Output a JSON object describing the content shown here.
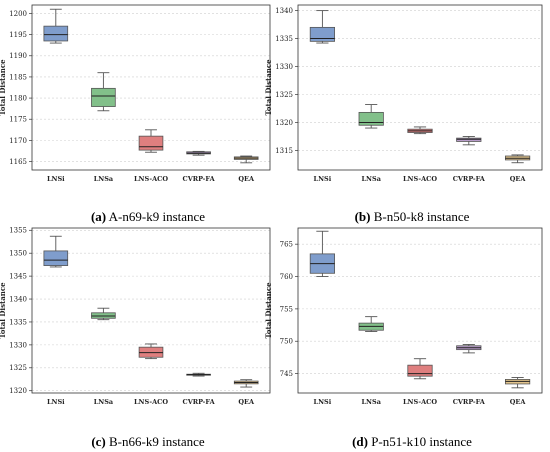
{
  "colors": {
    "LNSi": "#7f9dcc",
    "LNSa": "#82c08a",
    "LNS-ACO": "#df7f7f",
    "CVRP-FA": "#b79bc8",
    "QEA": "#e2c48d",
    "median": "#222222",
    "grid": "#d0d0d0"
  },
  "chart_data": [
    {
      "type": "box",
      "ylabel": "Total Distance",
      "categories": [
        "LNSi",
        "LNSa",
        "LNS-ACO",
        "CVRP-FA",
        "QEA"
      ],
      "ylim": [
        1163,
        1202
      ],
      "yticks": [
        1165,
        1170,
        1175,
        1180,
        1185,
        1190,
        1195,
        1200
      ],
      "grid": true,
      "caption_label": "(a)",
      "caption_text": " A-n69-k9 instance",
      "boxes": [
        {
          "min": 1193.0,
          "q1": 1193.5,
          "median": 1195.0,
          "q3": 1197.0,
          "max": 1201.0
        },
        {
          "min": 1177.0,
          "q1": 1178.0,
          "median": 1180.5,
          "q3": 1182.3,
          "max": 1186.0
        },
        {
          "min": 1167.2,
          "q1": 1167.7,
          "median": 1168.5,
          "q3": 1171.0,
          "max": 1172.5
        },
        {
          "min": 1166.5,
          "q1": 1166.8,
          "median": 1167.0,
          "q3": 1167.3,
          "max": 1167.4
        },
        {
          "min": 1164.7,
          "q1": 1165.5,
          "median": 1165.8,
          "q3": 1166.1,
          "max": 1166.3
        }
      ]
    },
    {
      "type": "box",
      "ylabel": "Total Distance",
      "categories": [
        "LNSi",
        "LNSa",
        "LNS-ACO",
        "CVRP-FA",
        "QEA"
      ],
      "ylim": [
        1311.5,
        1341
      ],
      "yticks": [
        1315,
        1320,
        1325,
        1330,
        1335,
        1340
      ],
      "grid": true,
      "caption_label": "(b)",
      "caption_text": " B-n50-k8 instance",
      "boxes": [
        {
          "min": 1334.2,
          "q1": 1334.5,
          "median": 1335.0,
          "q3": 1337.0,
          "max": 1340.0
        },
        {
          "min": 1319.0,
          "q1": 1319.5,
          "median": 1320.0,
          "q3": 1321.8,
          "max": 1323.2
        },
        {
          "min": 1318.0,
          "q1": 1318.2,
          "median": 1318.5,
          "q3": 1318.8,
          "max": 1319.2
        },
        {
          "min": 1316.0,
          "q1": 1316.6,
          "median": 1317.0,
          "q3": 1317.2,
          "max": 1317.5
        },
        {
          "min": 1312.8,
          "q1": 1313.3,
          "median": 1313.6,
          "q3": 1314.0,
          "max": 1314.2
        }
      ]
    },
    {
      "type": "box",
      "ylabel": "Total Distance",
      "categories": [
        "LNSi",
        "LNSa",
        "LNS-ACO",
        "CVRP-FA",
        "QEA"
      ],
      "ylim": [
        1319.5,
        1355.5
      ],
      "yticks": [
        1320,
        1325,
        1330,
        1335,
        1340,
        1345,
        1350,
        1355
      ],
      "grid": true,
      "caption_label": "(c)",
      "caption_text": " B-n66-k9 instance",
      "boxes": [
        {
          "min": 1347.0,
          "q1": 1347.3,
          "median": 1348.5,
          "q3": 1350.5,
          "max": 1353.7
        },
        {
          "min": 1335.5,
          "q1": 1335.8,
          "median": 1336.3,
          "q3": 1337.0,
          "max": 1338.0
        },
        {
          "min": 1327.0,
          "q1": 1327.3,
          "median": 1328.3,
          "q3": 1329.5,
          "max": 1330.2
        },
        {
          "min": 1323.2,
          "q1": 1323.4,
          "median": 1323.5,
          "q3": 1323.6,
          "max": 1323.8
        },
        {
          "min": 1320.8,
          "q1": 1321.5,
          "median": 1321.8,
          "q3": 1322.1,
          "max": 1322.4
        }
      ]
    },
    {
      "type": "box",
      "ylabel": "Total Distance",
      "categories": [
        "LNSi",
        "LNSa",
        "LNS-ACO",
        "CVRP-FA",
        "QEA"
      ],
      "ylim": [
        742,
        767.5
      ],
      "yticks": [
        745,
        750,
        755,
        760,
        765
      ],
      "grid": true,
      "caption_label": "(d)",
      "caption_text": " P-n51-k10 instance",
      "boxes": [
        {
          "min": 760.0,
          "q1": 760.5,
          "median": 762.0,
          "q3": 763.5,
          "max": 767.0
        },
        {
          "min": 751.5,
          "q1": 751.7,
          "median": 752.3,
          "q3": 752.8,
          "max": 753.8
        },
        {
          "min": 744.2,
          "q1": 744.6,
          "median": 745.0,
          "q3": 746.3,
          "max": 747.3
        },
        {
          "min": 748.2,
          "q1": 748.7,
          "median": 749.0,
          "q3": 749.3,
          "max": 749.5
        },
        {
          "min": 742.8,
          "q1": 743.4,
          "median": 743.8,
          "q3": 744.1,
          "max": 744.4
        }
      ]
    }
  ]
}
